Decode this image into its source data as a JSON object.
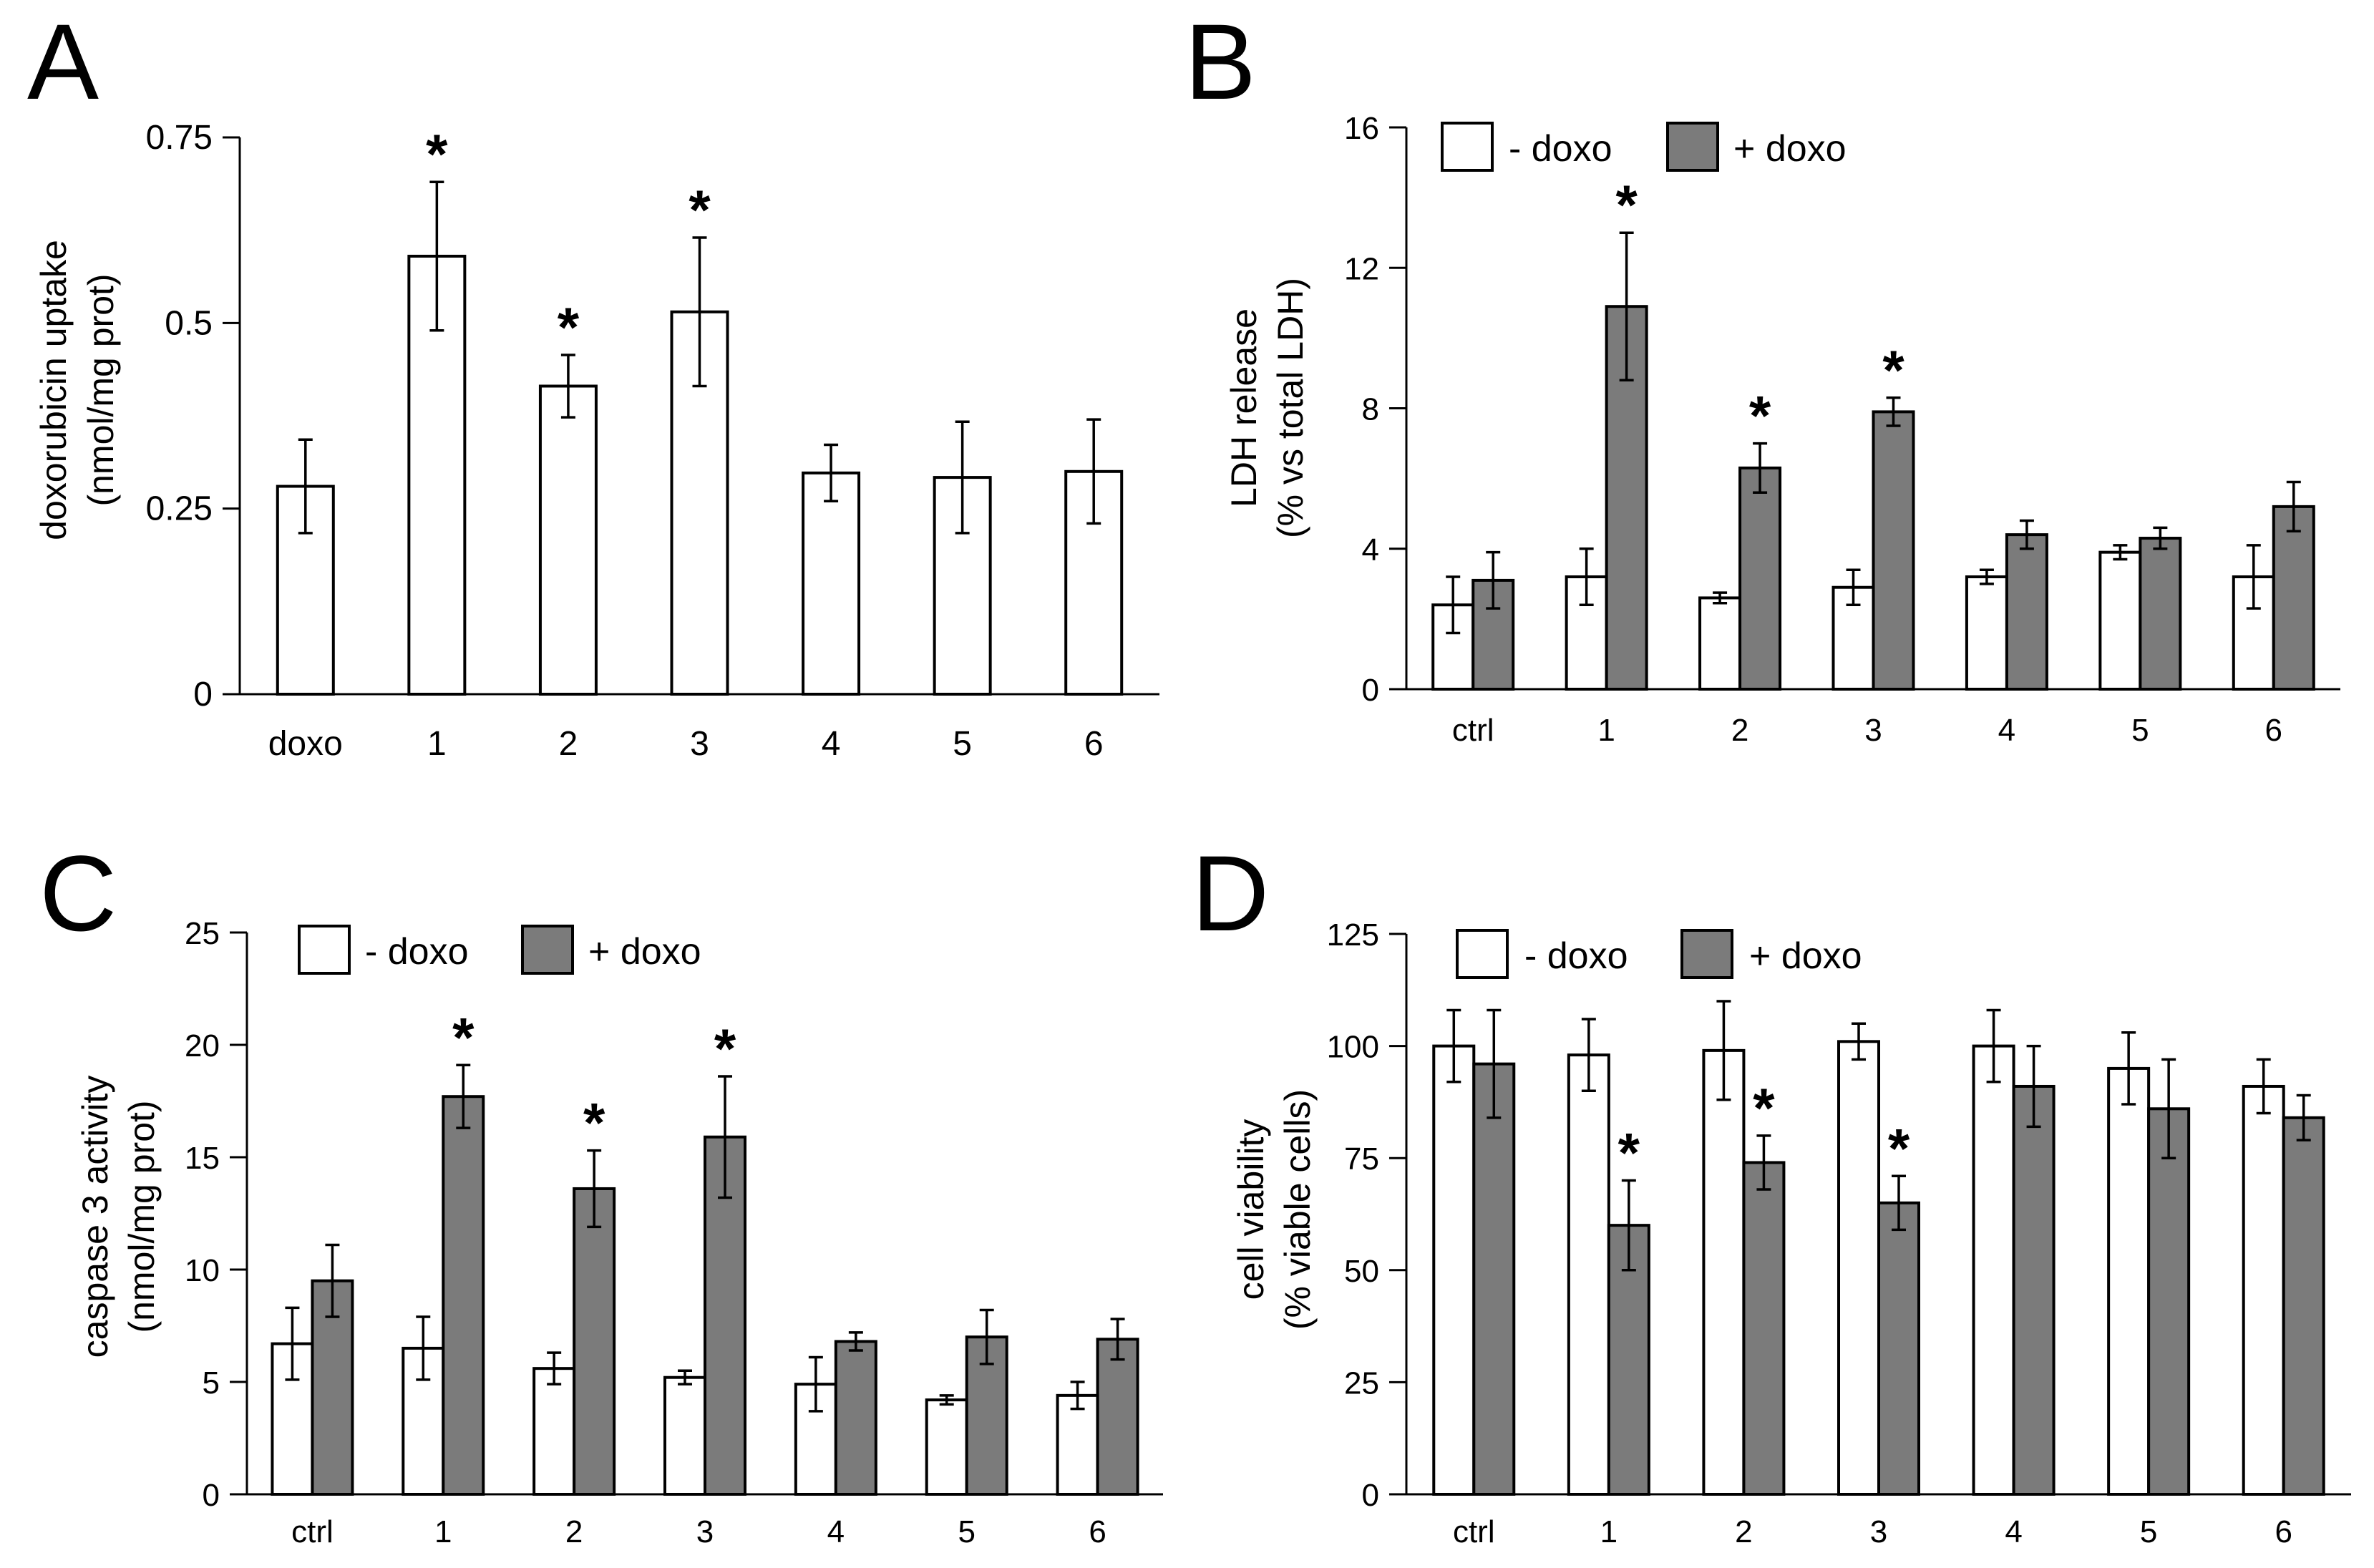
{
  "chart_data": [
    {
      "panel": "A",
      "type": "bar",
      "ylabel": [
        "doxorubicin uptake",
        "(nmol/mg prot)"
      ],
      "ylim": [
        0,
        0.75
      ],
      "yticks": [
        0,
        0.25,
        0.5,
        0.75
      ],
      "ytick_labels": [
        "0",
        "0.25",
        "0.5",
        "0.75"
      ],
      "categories": [
        "doxo",
        "1",
        "2",
        "3",
        "4",
        "5",
        "6"
      ],
      "series": [
        {
          "name": "",
          "color": "#ffffff",
          "values": [
            0.28,
            0.59,
            0.415,
            0.515,
            0.298,
            0.292,
            0.3
          ],
          "errors": [
            0.063,
            0.1,
            0.042,
            0.1,
            0.038,
            0.075,
            0.07
          ],
          "stars": [
            "",
            "*",
            "*",
            "*",
            "",
            "",
            ""
          ]
        }
      ]
    },
    {
      "panel": "B",
      "type": "bar",
      "ylabel": [
        "LDH release",
        "(% vs total LDH)"
      ],
      "ylim": [
        0,
        16
      ],
      "yticks": [
        0,
        4,
        8,
        12,
        16
      ],
      "ytick_labels": [
        "0",
        "4",
        "8",
        "12",
        "16"
      ],
      "legend": [
        "- doxo",
        "+ doxo"
      ],
      "categories": [
        "ctrl",
        "1",
        "2",
        "3",
        "4",
        "5",
        "6"
      ],
      "series": [
        {
          "name": "- doxo",
          "color": "#ffffff",
          "values": [
            2.4,
            3.2,
            2.6,
            2.9,
            3.2,
            3.9,
            3.2
          ],
          "errors": [
            0.8,
            0.8,
            0.15,
            0.5,
            0.2,
            0.2,
            0.9
          ],
          "stars": [
            "",
            "",
            "",
            "",
            "",
            "",
            ""
          ]
        },
        {
          "name": "+ doxo",
          "color": "#7b7b7b",
          "values": [
            3.1,
            10.9,
            6.3,
            7.9,
            4.4,
            4.3,
            5.2
          ],
          "errors": [
            0.8,
            2.1,
            0.7,
            0.4,
            0.4,
            0.3,
            0.7
          ],
          "stars": [
            "",
            "*",
            "*",
            "*",
            "",
            "",
            ""
          ]
        }
      ]
    },
    {
      "panel": "C",
      "type": "bar",
      "ylabel": [
        "caspase 3 activity",
        "(nmol/mg prot)"
      ],
      "ylim": [
        0,
        25
      ],
      "yticks": [
        0,
        5,
        10,
        15,
        20,
        25
      ],
      "ytick_labels": [
        "0",
        "5",
        "10",
        "15",
        "20",
        "25"
      ],
      "legend": [
        "- doxo",
        "+ doxo"
      ],
      "categories": [
        "ctrl",
        "1",
        "2",
        "3",
        "4",
        "5",
        "6"
      ],
      "series": [
        {
          "name": "- doxo",
          "color": "#ffffff",
          "values": [
            6.7,
            6.5,
            5.6,
            5.2,
            4.9,
            4.2,
            4.4
          ],
          "errors": [
            1.6,
            1.4,
            0.7,
            0.3,
            1.2,
            0.2,
            0.6
          ],
          "stars": [
            "",
            "",
            "",
            "",
            "",
            "",
            ""
          ]
        },
        {
          "name": "+ doxo",
          "color": "#7b7b7b",
          "values": [
            9.5,
            17.7,
            13.6,
            15.9,
            6.8,
            7.0,
            6.9
          ],
          "errors": [
            1.6,
            1.4,
            1.7,
            2.7,
            0.4,
            1.2,
            0.9
          ],
          "stars": [
            "",
            "*",
            "*",
            "*",
            "",
            "",
            ""
          ]
        }
      ]
    },
    {
      "panel": "D",
      "type": "bar",
      "ylabel": [
        "cell viability",
        "(% viable cells)"
      ],
      "ylim": [
        0,
        125
      ],
      "yticks": [
        0,
        25,
        50,
        75,
        100,
        125
      ],
      "ytick_labels": [
        "0",
        "25",
        "50",
        "75",
        "100",
        "125"
      ],
      "legend": [
        "- doxo",
        "+ doxo"
      ],
      "categories": [
        "ctrl",
        "1",
        "2",
        "3",
        "4",
        "5",
        "6"
      ],
      "series": [
        {
          "name": "- doxo",
          "color": "#ffffff",
          "values": [
            100,
            98,
            99,
            101,
            100,
            95,
            91
          ],
          "errors": [
            8,
            8,
            11,
            4,
            8,
            8,
            6
          ],
          "stars": [
            "",
            "",
            "",
            "",
            "",
            "",
            ""
          ]
        },
        {
          "name": "+ doxo",
          "color": "#7b7b7b",
          "values": [
            96,
            60,
            74,
            65,
            91,
            86,
            84
          ],
          "errors": [
            12,
            10,
            6,
            6,
            9,
            11,
            5
          ],
          "stars": [
            "",
            "*",
            "*",
            "*",
            "",
            "",
            ""
          ]
        }
      ]
    }
  ]
}
